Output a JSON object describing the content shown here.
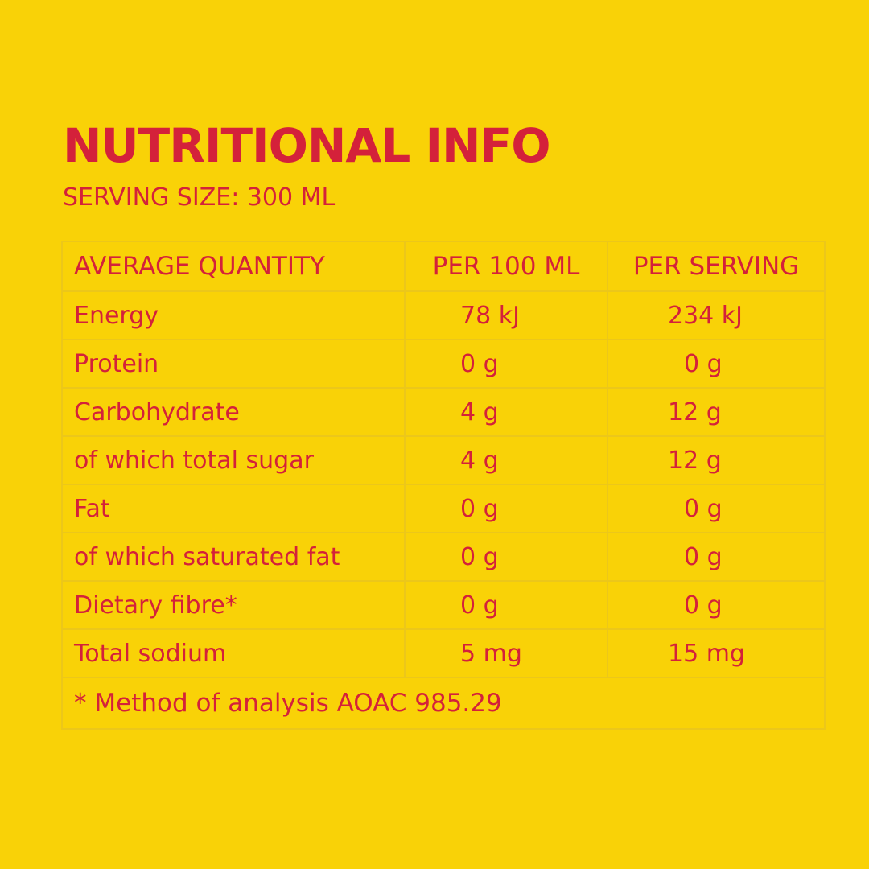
{
  "header": {
    "title": "NUTRITIONAL INFO",
    "serving_size": "SERVING SIZE: 300 ML"
  },
  "table": {
    "columns": [
      "AVERAGE QUANTITY",
      "PER 100 ML",
      "PER SERVING"
    ],
    "rows": [
      {
        "label": "Energy",
        "per_100ml": "78 kJ",
        "per_serving": "234 kJ"
      },
      {
        "label": "Protein",
        "per_100ml": "0 g",
        "per_serving": "0 g"
      },
      {
        "label": "Carbohydrate",
        "per_100ml": "4 g",
        "per_serving": "12 g"
      },
      {
        "label": "of which total sugar",
        "per_100ml": "4 g",
        "per_serving": "12 g"
      },
      {
        "label": "Fat",
        "per_100ml": "0 g",
        "per_serving": "0 g"
      },
      {
        "label": "of which saturated fat",
        "per_100ml": "0 g",
        "per_serving": "0 g"
      },
      {
        "label": "Dietary fibre*",
        "per_100ml": "0 g",
        "per_serving": "0 g"
      },
      {
        "label": "Total sodium",
        "per_100ml": "5 mg",
        "per_serving": "15 mg"
      }
    ],
    "footnote": "* Method of analysis AOAC 985.29"
  },
  "colors": {
    "background": "#f9d207",
    "text": "#d4213a",
    "grid": "#ecc71a"
  }
}
